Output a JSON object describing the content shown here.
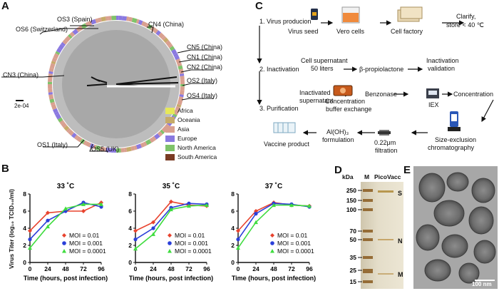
{
  "panels": {
    "a": "A",
    "b": "B",
    "c": "C",
    "d": "D",
    "e": "E"
  },
  "tree": {
    "labels": {
      "cn4": "CN4 (China)",
      "os3": "OS3 (Spain)",
      "os6": "OS6 (Switzerland)",
      "cn5": "CN5 (China)",
      "cn1": "CN1 (China)",
      "cn2": "CN2 (China)",
      "os2": "OS2 (Italy)",
      "os4": "OS4 (Italy)",
      "cn3": "CN3 (China)",
      "os1": "OS1 (Italy)",
      "os5": "OS5 (UK)"
    },
    "scale": "2e-04",
    "legend": [
      {
        "name": "Africa",
        "color": "#e6e85a"
      },
      {
        "name": "Oceania",
        "color": "#c6ab6a"
      },
      {
        "name": "Asia",
        "color": "#d9a090"
      },
      {
        "name": "Europe",
        "color": "#8a79e0"
      },
      {
        "name": "North America",
        "color": "#7fc36a"
      },
      {
        "name": "South America",
        "color": "#7a3b24"
      }
    ]
  },
  "workflow": {
    "step1": "1. Virus producion",
    "seed": "Virus seed",
    "vero": "Vero cells",
    "factory": "Cell factory",
    "clarify": "Clarify,",
    "store": "store < 40 ℃",
    "step2": "2. Inactivation",
    "supernatant": "Cell supernatant",
    "liters": "50 liters",
    "bpl": "β-propiolactone",
    "inact": "Inactivation",
    "validation": "validation",
    "step3": "3. Purification",
    "inact_sup1": "Inactivated",
    "inact_sup2": "supernatant",
    "conc1": "Concentration",
    "conc2": "buffer exchange",
    "benzonase": "Benzonase",
    "iex": "IEX",
    "concentration": "Concentration",
    "sec1": "Size-exclusion",
    "sec2": "chromatography",
    "filt1": "0.22μm",
    "filt2": "filtration",
    "alum1": "Al(OH)₃",
    "alum2": "formulation",
    "vaccine": "Vaccine product"
  },
  "gel": {
    "kda": "kDa",
    "lane_m": "M",
    "lane_pv": "PicoVacc",
    "markers": [
      "250",
      "150",
      "100",
      "70",
      "50",
      "35",
      "25",
      "15"
    ],
    "bands": {
      "s": "S",
      "n": "N",
      "m": "M"
    }
  },
  "em": {
    "scale": "100 nm"
  },
  "chart_data": [
    {
      "type": "line",
      "title": "33 ˚C",
      "xlabel": "Time (hours, post infection)",
      "ylabel": "Virus Titer (log₁₀ TCID₅₀/ml)",
      "x": [
        0,
        24,
        48,
        72,
        96
      ],
      "xlim": [
        0,
        96
      ],
      "ylim": [
        0,
        8
      ],
      "yticks": [
        0,
        2,
        4,
        6,
        8
      ],
      "series": [
        {
          "name": "MOI = 0.01",
          "color": "#e8432e",
          "values": [
            3.7,
            5.8,
            6.0,
            6.0,
            7.0
          ]
        },
        {
          "name": "MOI = 0.001",
          "color": "#2a3fd9",
          "values": [
            2.7,
            4.9,
            6.0,
            7.0,
            6.5
          ]
        },
        {
          "name": "MOI = 0.0001",
          "color": "#3fdc3f",
          "values": [
            1.7,
            4.2,
            6.3,
            6.8,
            6.8
          ]
        }
      ]
    },
    {
      "type": "line",
      "title": "35 ˚C",
      "xlabel": "Time (hours, post infection)",
      "ylabel": "Virus Titer (log₁₀ TCID₅₀/ml)",
      "x": [
        0,
        24,
        48,
        72,
        96
      ],
      "xlim": [
        0,
        96
      ],
      "ylim": [
        0,
        8
      ],
      "yticks": [
        0,
        2,
        4,
        6,
        8
      ],
      "series": [
        {
          "name": "MOI = 0.01",
          "color": "#e8432e",
          "values": [
            3.7,
            4.7,
            7.1,
            6.7,
            6.6
          ]
        },
        {
          "name": "MOI = 0.001",
          "color": "#2a3fd9",
          "values": [
            2.7,
            4.0,
            6.4,
            6.9,
            6.8
          ]
        },
        {
          "name": "MOI = 0.0001",
          "color": "#3fdc3f",
          "values": [
            1.6,
            3.3,
            6.2,
            6.6,
            6.7
          ]
        }
      ]
    },
    {
      "type": "line",
      "title": "37 ˚C",
      "xlabel": "Time (hours, post infection)",
      "ylabel": "Virus Titer (log₁₀ TCID₅₀/ml)",
      "x": [
        0,
        24,
        48,
        72,
        96
      ],
      "xlim": [
        0,
        96
      ],
      "ylim": [
        0,
        8
      ],
      "yticks": [
        0,
        2,
        4,
        6,
        8
      ],
      "series": [
        {
          "name": "MOI = 0.01",
          "color": "#e8432e",
          "values": [
            3.7,
            6.0,
            7.0,
            6.7,
            6.6
          ]
        },
        {
          "name": "MOI = 0.001",
          "color": "#2a3fd9",
          "values": [
            2.7,
            5.7,
            6.9,
            6.8,
            6.5
          ]
        },
        {
          "name": "MOI = 0.0001",
          "color": "#3fdc3f",
          "values": [
            1.7,
            4.7,
            6.7,
            6.7,
            6.6
          ]
        }
      ]
    }
  ]
}
